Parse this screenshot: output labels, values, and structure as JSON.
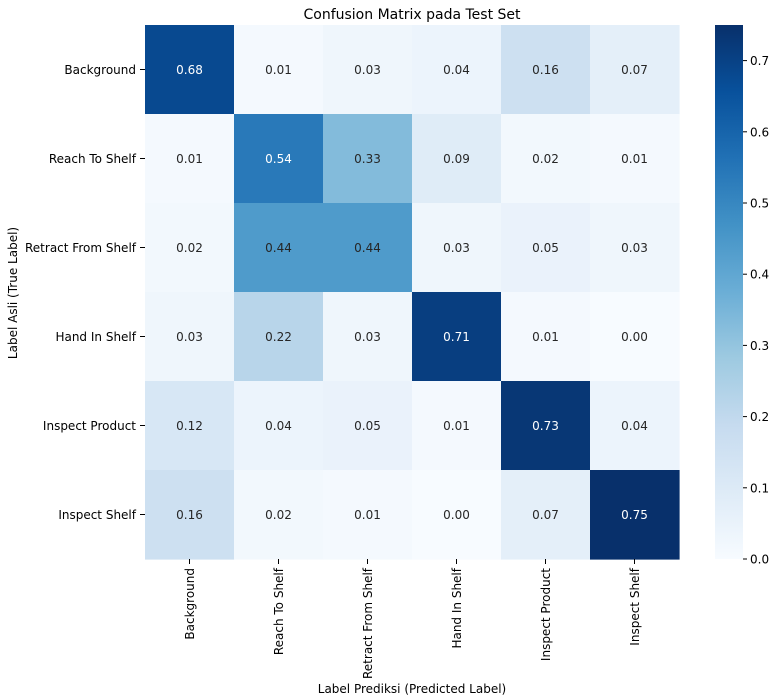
{
  "chart_data": {
    "type": "heatmap",
    "title": "Confusion Matrix pada Test Set",
    "xlabel": "Label Prediksi (Predicted Label)",
    "ylabel": "Label Asli (True Label)",
    "x_categories": [
      "Background",
      "Reach To Shelf",
      "Retract From Shelf",
      "Hand In Shelf",
      "Inspect Product",
      "Inspect Shelf"
    ],
    "y_categories": [
      "Background",
      "Reach To Shelf",
      "Retract From Shelf",
      "Hand In Shelf",
      "Inspect Product",
      "Inspect Shelf"
    ],
    "values": [
      [
        0.68,
        0.01,
        0.03,
        0.04,
        0.16,
        0.07
      ],
      [
        0.01,
        0.54,
        0.33,
        0.09,
        0.02,
        0.01
      ],
      [
        0.02,
        0.44,
        0.44,
        0.03,
        0.05,
        0.03
      ],
      [
        0.03,
        0.22,
        0.03,
        0.71,
        0.01,
        0.0
      ],
      [
        0.12,
        0.04,
        0.05,
        0.01,
        0.73,
        0.04
      ],
      [
        0.16,
        0.02,
        0.01,
        0.0,
        0.07,
        0.75
      ]
    ],
    "cell_labels": [
      [
        "0.68",
        "0.01",
        "0.03",
        "0.04",
        "0.16",
        "0.07"
      ],
      [
        "0.01",
        "0.54",
        "0.33",
        "0.09",
        "0.02",
        "0.01"
      ],
      [
        "0.02",
        "0.44",
        "0.44",
        "0.03",
        "0.05",
        "0.03"
      ],
      [
        "0.03",
        "0.22",
        "0.03",
        "0.71",
        "0.01",
        "0.00"
      ],
      [
        "0.12",
        "0.04",
        "0.05",
        "0.01",
        "0.73",
        "0.04"
      ],
      [
        "0.16",
        "0.02",
        "0.01",
        "0.00",
        "0.07",
        "0.75"
      ]
    ],
    "colormap": "Blues",
    "colorbar": {
      "range": [
        0.0,
        0.75
      ],
      "ticks": [
        0.0,
        0.1,
        0.2,
        0.3,
        0.4,
        0.5,
        0.6,
        0.7
      ],
      "tick_labels": [
        "0.0",
        "0.1",
        "0.2",
        "0.3",
        "0.4",
        "0.5",
        "0.6",
        "0.7"
      ]
    },
    "grid": false
  }
}
